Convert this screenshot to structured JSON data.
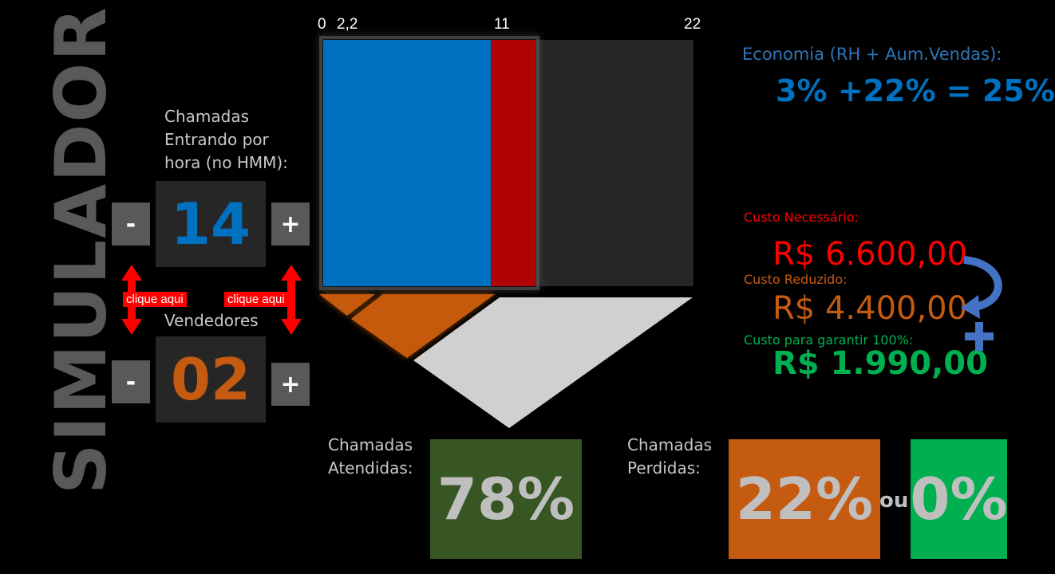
{
  "app_title": "SIMULADOR",
  "calls_input": {
    "label_line1": "Chamadas",
    "label_line2": "Entrando por",
    "label_line3": "hora (no HMM):",
    "value": "14",
    "minus": "-",
    "plus": "+"
  },
  "hints": {
    "left": "clique aqui",
    "right": "clique aqui"
  },
  "sellers_input": {
    "label": "Vendedores",
    "value": "02",
    "minus": "-",
    "plus": "+"
  },
  "scale": {
    "tick_0": "0",
    "tick_1": "2,2",
    "tick_2": "11",
    "tick_3": "22"
  },
  "colors": {
    "blue": "#0070c0",
    "red": "#c00000",
    "orange": "#c55a11",
    "green": "#00b050",
    "dark_green": "#375623"
  },
  "economy": {
    "label": "Economia (RH + Aum.Vendas):",
    "value": "3% +22% = 25%"
  },
  "costs": {
    "required_label": "Custo Necessário:",
    "required_value": "R$ 6.600,00",
    "reduced_label": "Custo Reduzido:",
    "reduced_value": "R$ 4.400,00",
    "guarantee_label": "Custo para garantir 100%:",
    "guarantee_value": "R$ 1.990,00"
  },
  "answered": {
    "label_line1": "Chamadas",
    "label_line2": "Atendidas:",
    "value": "78%"
  },
  "lost": {
    "label_line1": "Chamadas",
    "label_line2": "Perdidas:",
    "value": "22%",
    "or": "ou",
    "alt_value": "0%"
  }
}
